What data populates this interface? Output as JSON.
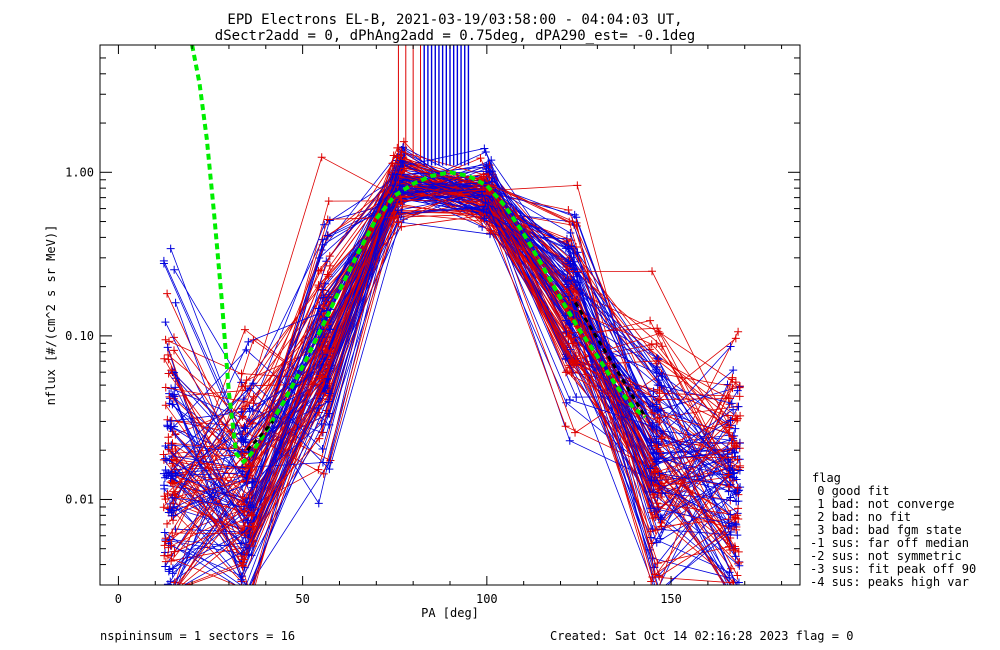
{
  "chart_data": {
    "type": "line",
    "title_lines": [
      "EPD Electrons EL-B, 2021-03-19/03:58:00 - 04:04:03 UT,",
      "dSectr2add = 0, dPhAng2add = 0.75deg, dPA290_est=  -0.1deg"
    ],
    "xlabel": "PA [deg]",
    "ylabel": "nflux [#/(cm^2 s sr MeV)]",
    "xlim": [
      -5,
      185
    ],
    "ylim": [
      0.003,
      6
    ],
    "yscale": "log",
    "x_ticks": [
      0,
      50,
      100,
      150
    ],
    "x_tick_labels": [
      "0",
      "50",
      "100",
      "150"
    ],
    "y_ticks": [
      0.01,
      0.1,
      1.0
    ],
    "y_tick_labels": [
      "0.01",
      "0.10",
      "1.00"
    ],
    "series_colors": {
      "red": "#dd0000",
      "blue": "#0000dd",
      "fit": "#00ee00",
      "fit_dark": "#000000"
    },
    "spokes": {
      "red_x": [
        76,
        78,
        80,
        82
      ],
      "blue_x": [
        83,
        84,
        85,
        86,
        87,
        88,
        89,
        90,
        91,
        92,
        93,
        94,
        95
      ]
    },
    "fit_curve": {
      "x": [
        20,
        22,
        24,
        26,
        28,
        30,
        32,
        34,
        36,
        40,
        45,
        50,
        55,
        60,
        65,
        70,
        75,
        80,
        85,
        90,
        95,
        100,
        105,
        110,
        115,
        120,
        125,
        130,
        135,
        140,
        143
      ],
      "y": [
        6,
        3.5,
        1.6,
        0.55,
        0.17,
        0.045,
        0.019,
        0.017,
        0.019,
        0.026,
        0.04,
        0.065,
        0.11,
        0.19,
        0.32,
        0.52,
        0.72,
        0.85,
        0.95,
        1.0,
        0.95,
        0.83,
        0.62,
        0.42,
        0.27,
        0.17,
        0.11,
        0.075,
        0.05,
        0.036,
        0.032
      ]
    },
    "fit_dark_segments": [
      {
        "x": [
          35,
          42
        ],
        "y": [
          0.02,
          0.03
        ]
      },
      {
        "x": [
          124,
          143
        ],
        "y": [
          0.16,
          0.032
        ]
      }
    ],
    "profile": {
      "pa": [
        14,
        35,
        56,
        76,
        100,
        123,
        146,
        167
      ],
      "y_center": [
        0.014,
        0.012,
        0.09,
        0.85,
        0.72,
        0.14,
        0.018,
        0.011
      ]
    },
    "legend": {
      "title": "flag",
      "entries": [
        " 0 good fit",
        " 1 bad: not converge",
        " 2 bad: no fit",
        " 3 bad: bad fgm state",
        "-1 sus: far off median",
        "-2 sus: not symmetric",
        "-3 sus: fit peak off 90",
        "-4 sus: peaks high var"
      ]
    }
  },
  "footer": {
    "left": "nspininsum =  1  sectors = 16",
    "right": "Created: Sat Oct 14 02:16:28 2023   flag = 0"
  }
}
